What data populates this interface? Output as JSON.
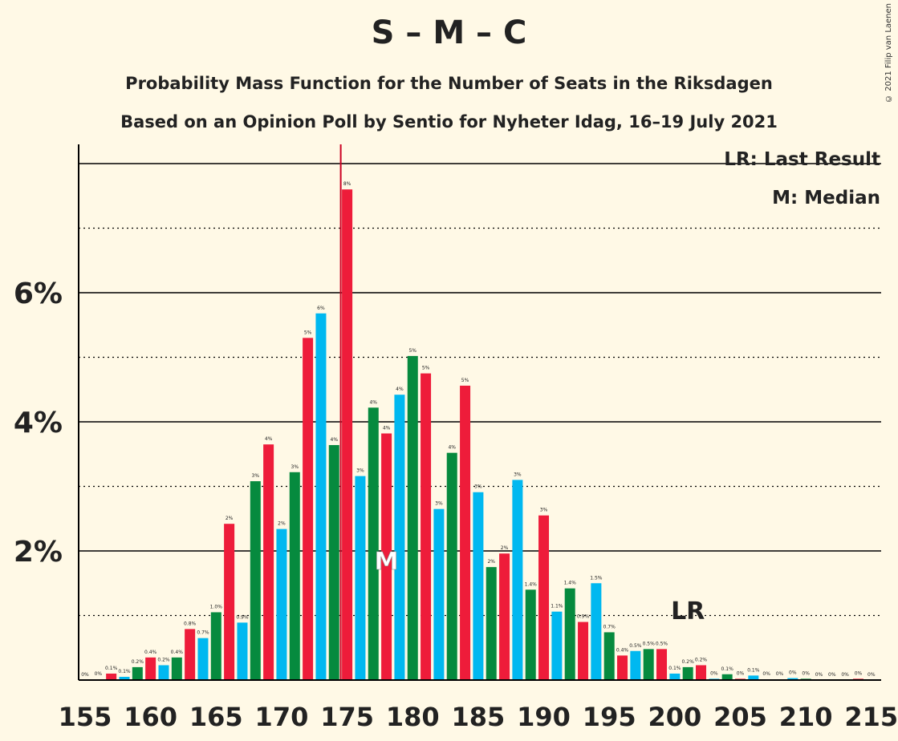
{
  "title": "S – M – C",
  "subtitle1": "Probability Mass Function for the Number of Seats in the Riksdagen",
  "subtitle2": "Based on an Opinion Poll by Sentio for Nyheter Idag, 16–19 July 2021",
  "copyright": "© 2021 Filip van Laenen",
  "legend": {
    "lr": "LR: Last Result",
    "m": "M: Median"
  },
  "colors": {
    "blue": "#00B8F0",
    "green": "#068A3E",
    "red": "#EE1C3A",
    "background": "#FFF9E6",
    "majority_line": "#CC0022"
  },
  "chart_data": {
    "type": "bar",
    "x": [
      155,
      156,
      157,
      158,
      159,
      160,
      161,
      162,
      163,
      164,
      165,
      166,
      167,
      168,
      169,
      170,
      171,
      172,
      173,
      174,
      175,
      176,
      177,
      178,
      179,
      180,
      181,
      182,
      183,
      184,
      185,
      186,
      187,
      188,
      189,
      190,
      191,
      192,
      193,
      194,
      195,
      196,
      197,
      198,
      199,
      200,
      201,
      202,
      203,
      204,
      205,
      206,
      207,
      208,
      209,
      210,
      211,
      212,
      213,
      214,
      215
    ],
    "values": [
      0.0,
      0.01,
      0.1,
      0.05,
      0.2,
      0.35,
      0.23,
      0.35,
      0.79,
      0.65,
      1.05,
      2.42,
      0.89,
      3.08,
      3.65,
      2.34,
      3.22,
      5.3,
      5.68,
      3.64,
      7.6,
      3.16,
      4.22,
      3.82,
      4.42,
      5.02,
      4.75,
      2.65,
      3.52,
      4.56,
      2.91,
      1.75,
      1.96,
      3.1,
      1.4,
      2.55,
      1.06,
      1.42,
      0.9,
      1.5,
      0.74,
      0.38,
      0.45,
      0.48,
      0.48,
      0.1,
      0.2,
      0.23,
      0.02,
      0.09,
      0.02,
      0.07,
      0.01,
      0.01,
      0.03,
      0.02,
      0.0,
      0.0,
      0.0,
      0.02,
      0.0
    ],
    "labels": [
      "0%",
      "0%",
      "0.1%",
      "0.1%",
      "0.2%",
      "0.4%",
      "0.2%",
      "0.4%",
      "0.8%",
      "0.7%",
      "1.0%",
      "2%",
      "0.9%",
      "3%",
      "4%",
      "2%",
      "3%",
      "5%",
      "6%",
      "4%",
      "8%",
      "3%",
      "4%",
      "4%",
      "4%",
      "5%",
      "5%",
      "3%",
      "4%",
      "5%",
      "3%",
      "2%",
      "2%",
      "3%",
      "1.4%",
      "3%",
      "1.1%",
      "1.4%",
      "0.9%",
      "1.5%",
      "0.7%",
      "0.4%",
      "0.5%",
      "0.5%",
      "0.5%",
      "0.1%",
      "0.2%",
      "0.2%",
      "0%",
      "0.1%",
      "0%",
      "0.1%",
      "0%",
      "0%",
      "0%",
      "0%",
      "0%",
      "0%",
      "0%",
      "0%",
      "0%"
    ],
    "bar_colors": [
      "blue",
      "green",
      "red"
    ],
    "y_ticks": [
      "2%",
      "4%",
      "6%"
    ],
    "x_ticks": [
      "155",
      "160",
      "165",
      "170",
      "175",
      "180",
      "185",
      "190",
      "195",
      "200",
      "205",
      "210",
      "215"
    ],
    "ylim": [
      0,
      8.2
    ],
    "median": 178,
    "median_label": "M",
    "last_result": 201,
    "last_result_label": "LR",
    "majority_line": 175
  }
}
